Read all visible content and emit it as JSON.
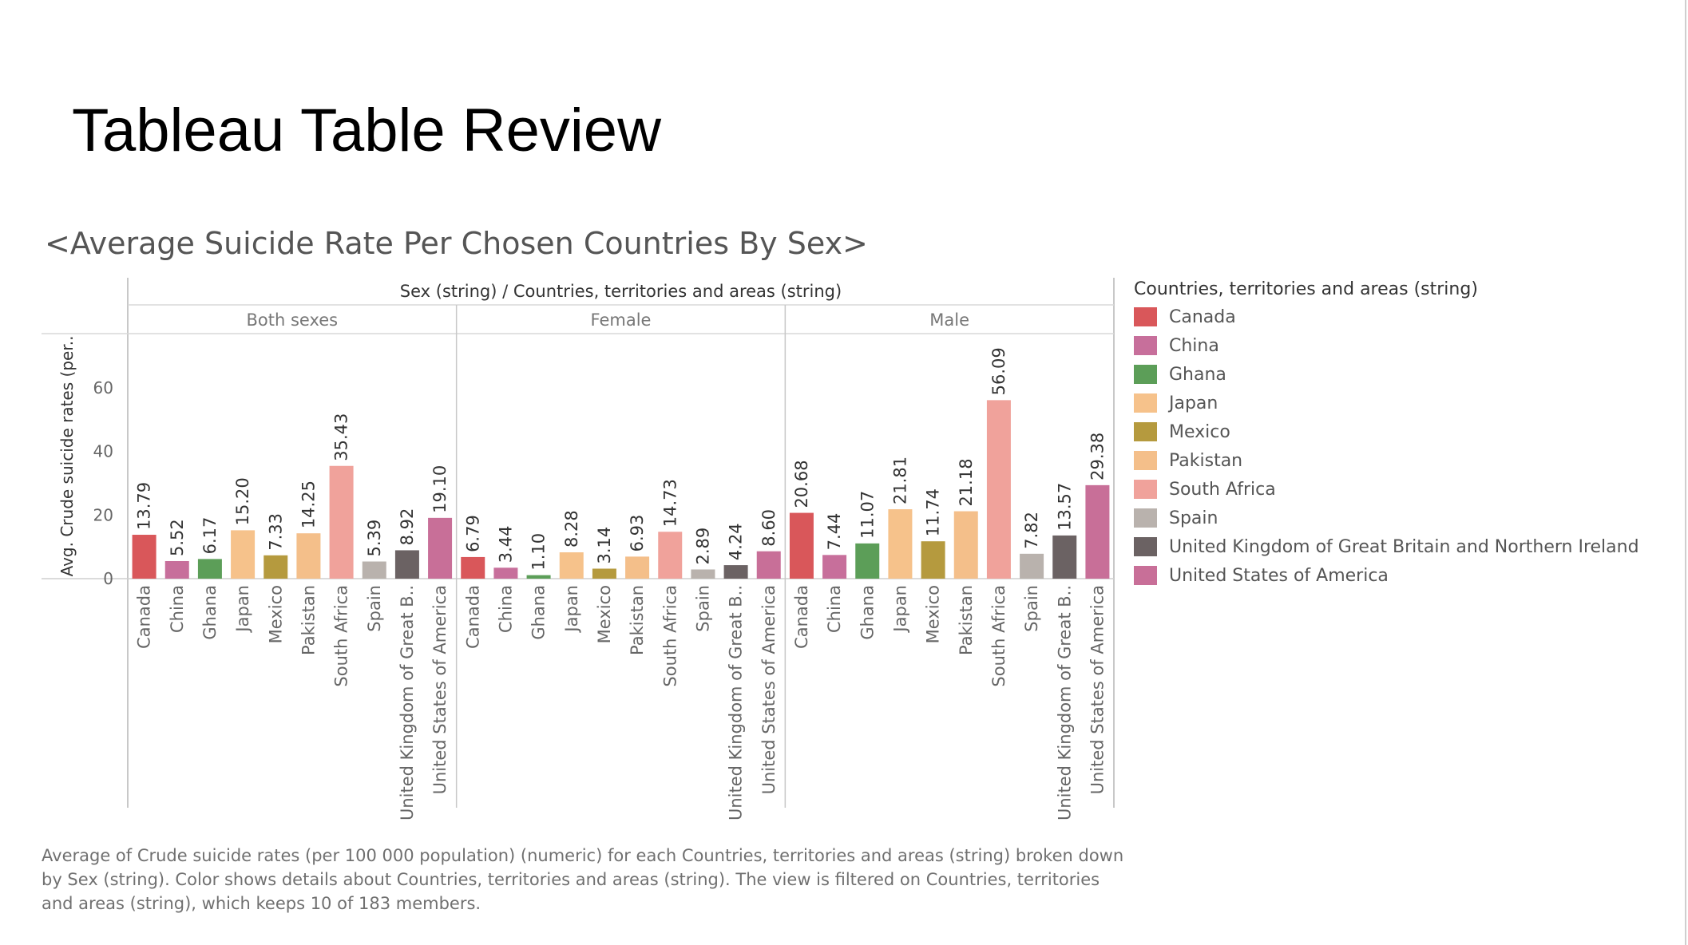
{
  "slide": {
    "title": "Tableau Table Review"
  },
  "sheet": {
    "title": "<Average Suicide Rate Per Chosen Countries By Sex>",
    "caption": "Average of Crude suicide rates (per 100 000 population) (numeric) for each Countries, territories and areas (string) broken down by Sex (string).  Color shows details about Countries, territories and areas (string). The view is filtered on Countries, territories and areas (string), which keeps 10 of 183 members."
  },
  "legend": {
    "title": "Countries, territories and areas (string)",
    "items": [
      {
        "label": "Canada",
        "color": "#d9575a"
      },
      {
        "label": "China",
        "color": "#c76f9b"
      },
      {
        "label": "Ghana",
        "color": "#5c9e58"
      },
      {
        "label": "Japan",
        "color": "#f6c28b"
      },
      {
        "label": "Mexico",
        "color": "#b59a3e"
      },
      {
        "label": "Pakistan",
        "color": "#f4bf8a"
      },
      {
        "label": "South Africa",
        "color": "#f0a29b"
      },
      {
        "label": "Spain",
        "color": "#b9b2ad"
      },
      {
        "label": "United Kingdom of Great Britain and Northern Ireland",
        "color": "#6b6263"
      },
      {
        "label": "United States of America",
        "color": "#c86f98"
      }
    ]
  },
  "chart_data": {
    "type": "bar",
    "column_header": "Sex (string) / Countries, territories and areas (string)",
    "ylabel": "Avg. Crude suicide rates (per..",
    "yticks": [
      0,
      20,
      40,
      60
    ],
    "ylim": [
      0,
      77
    ],
    "grid": false,
    "categories": [
      "Canada",
      "China",
      "Ghana",
      "Japan",
      "Mexico",
      "Pakistan",
      "South Africa",
      "Spain",
      "United Kingdom of Great B..",
      "United States of America"
    ],
    "panels": [
      {
        "name": "Both sexes",
        "values": [
          13.79,
          5.52,
          6.17,
          15.2,
          7.33,
          14.25,
          35.43,
          5.39,
          8.92,
          19.1
        ],
        "labels": [
          "13.79",
          "5.52",
          "6.17",
          "15.20",
          "7.33",
          "14.25",
          "35.43",
          "5.39",
          "8.92",
          "19.10"
        ]
      },
      {
        "name": "Female",
        "values": [
          6.79,
          3.44,
          1.1,
          8.28,
          3.14,
          6.93,
          14.73,
          2.89,
          4.24,
          8.6
        ],
        "labels": [
          "6.79",
          "3.44",
          "1.10",
          "8.28",
          "3.14",
          "6.93",
          "14.73",
          "2.89",
          "4.24",
          "8.60"
        ]
      },
      {
        "name": "Male",
        "values": [
          20.68,
          7.44,
          11.07,
          21.81,
          11.74,
          21.18,
          56.09,
          7.82,
          13.57,
          29.38
        ],
        "labels": [
          "20.68",
          "7.44",
          "11.07",
          "21.81",
          "11.74",
          "21.18",
          "56.09",
          "7.82",
          "13.57",
          "29.38"
        ]
      }
    ]
  }
}
